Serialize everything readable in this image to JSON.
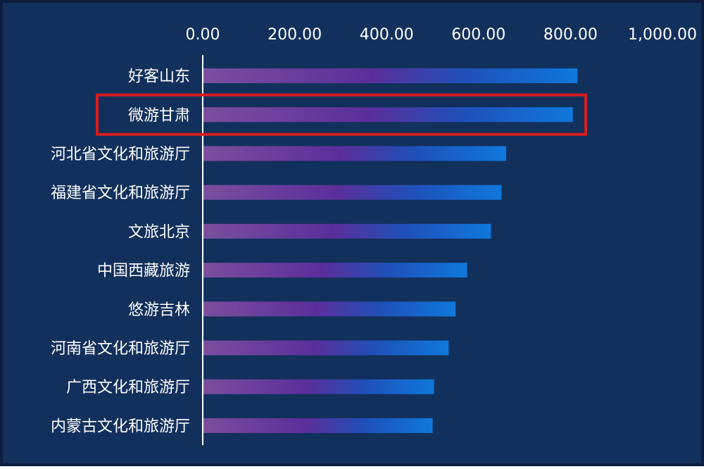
{
  "chart_data": {
    "type": "bar",
    "orientation": "horizontal",
    "categories": [
      "好客山东",
      "微游甘肃",
      "河北省文化和旅游厅",
      "福建省文化和旅游厅",
      "文旅北京",
      "中国西藏旅游",
      "悠游吉林",
      "河南省文化和旅游厅",
      "广西文化和旅游厅",
      "内蒙古文化和旅游厅"
    ],
    "values": [
      815,
      805,
      660,
      650,
      627,
      575,
      550,
      535,
      503,
      500
    ],
    "xlim": [
      0,
      1000
    ],
    "x_ticks": [
      "0.00",
      "200.00",
      "400.00",
      "600.00",
      "800.00",
      "1,000.00"
    ],
    "x_axis_position": "top",
    "grid": false,
    "highlighted_category": "微游甘肃",
    "colors": {
      "background": "#12305c",
      "bar_start": "#6a3f9a",
      "bar_end": "#0f75d9",
      "highlight_box": "#d81e1e",
      "text": "#ffffff"
    }
  }
}
